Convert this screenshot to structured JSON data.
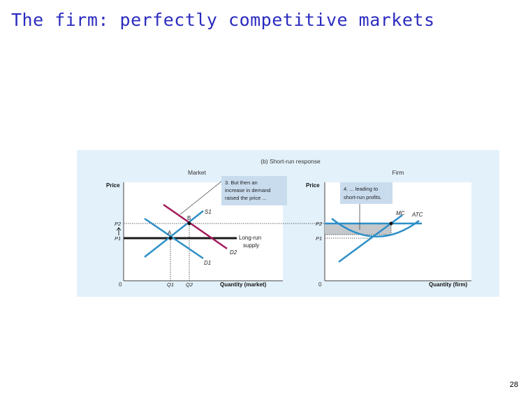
{
  "slide": {
    "title": "The firm: perfectly competitive markets",
    "page_number": "28"
  },
  "figure": {
    "caption": "(b) Short-run response",
    "market": {
      "panel_title": "Market",
      "y_axis_label": "Price",
      "x_axis_label": "Quantity (market)",
      "origin": "0",
      "price_ticks": [
        "P2",
        "P1"
      ],
      "quantity_ticks": [
        "Q1",
        "Q2"
      ],
      "points": [
        "A",
        "B"
      ],
      "curves": {
        "supply": "S1",
        "demand_old": "D1",
        "demand_new": "D2",
        "long_run": [
          "Long-run",
          "supply"
        ]
      },
      "callout": [
        "3. But then an",
        "increase in demand",
        "raised the price ..."
      ]
    },
    "firm": {
      "panel_title": "Firm",
      "y_axis_label": "Price",
      "x_axis_label": "Quantity (firm)",
      "origin": "0",
      "price_ticks": [
        "P2",
        "P1"
      ],
      "curves": {
        "mc": "MC",
        "atc": "ATC"
      },
      "callout": [
        "4. ... leading to",
        "short-run profits."
      ]
    },
    "colors": {
      "curve": "#2d8fc7",
      "demand_new": "#a3195b",
      "long_run": "#1a1a1a",
      "callout_box": "#c9dcee",
      "profit_area": "#c4c8cb"
    }
  }
}
